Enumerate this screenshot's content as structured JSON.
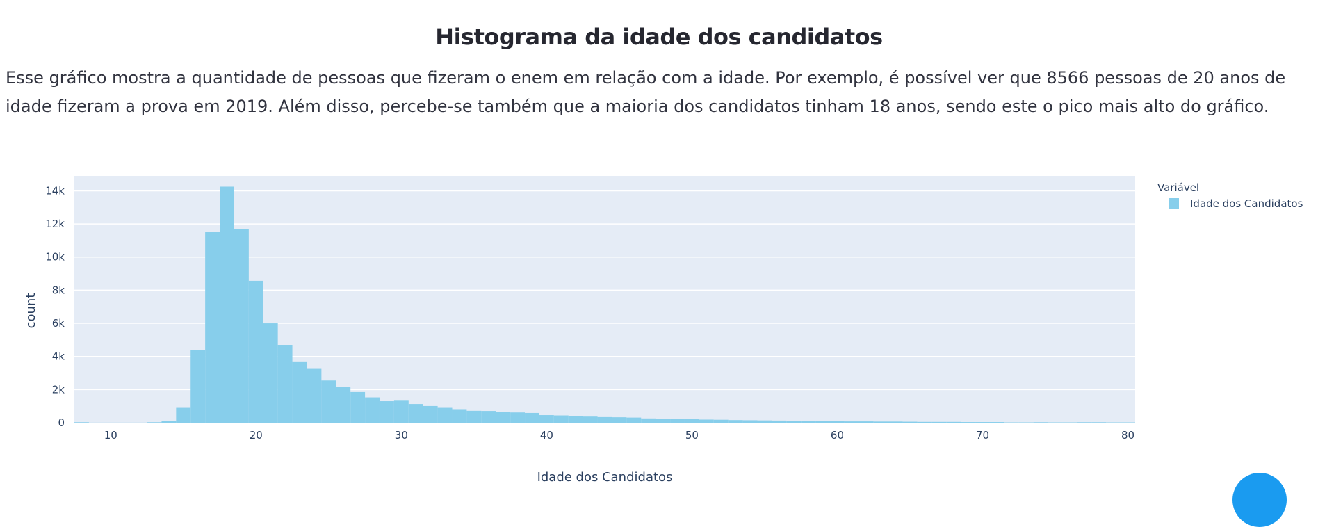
{
  "page": {
    "title": "Histograma da idade dos candidatos",
    "description": "Esse gráfico mostra a quantidade de pessoas que fizeram o enem em relação com a idade. Por exemplo, é possível ver que 8566 pessoas de 20 anos de idade fizeram a prova em 2019. Além disso, percebe-se também que a maioria dos candidatos tinham 18 anos, sendo este o pico mais alto do gráfico."
  },
  "chart_data": {
    "type": "bar",
    "title": "",
    "xlabel": "Idade dos Candidatos",
    "ylabel": "count",
    "xlim": [
      7.5,
      80.5
    ],
    "ylim": [
      0,
      14900
    ],
    "x_ticks": [
      10,
      20,
      30,
      40,
      50,
      60,
      70,
      80
    ],
    "x_tick_labels": [
      "10",
      "20",
      "30",
      "40",
      "50",
      "60",
      "70",
      "80"
    ],
    "y_ticks": [
      0,
      2000,
      4000,
      6000,
      8000,
      10000,
      12000,
      14000
    ],
    "y_tick_labels": [
      "0",
      "2k",
      "4k",
      "6k",
      "8k",
      "10k",
      "12k",
      "14k"
    ],
    "grid": true,
    "legend": {
      "title": "Variável",
      "position": "top-right"
    },
    "series": [
      {
        "name": "Idade dos Candidatos",
        "color": "#87ceeb",
        "bin_width": 1,
        "x": [
          8,
          9,
          10,
          11,
          12,
          13,
          14,
          15,
          16,
          17,
          18,
          19,
          20,
          21,
          22,
          23,
          24,
          25,
          26,
          27,
          28,
          29,
          30,
          31,
          32,
          33,
          34,
          35,
          36,
          37,
          38,
          39,
          40,
          41,
          42,
          43,
          44,
          45,
          46,
          47,
          48,
          49,
          50,
          51,
          52,
          53,
          54,
          55,
          56,
          57,
          58,
          59,
          60,
          61,
          62,
          63,
          64,
          65,
          66,
          67,
          68,
          69,
          70,
          71,
          72,
          73,
          74,
          75,
          76,
          77,
          78,
          79,
          80
        ],
        "values": [
          30,
          5,
          5,
          5,
          5,
          30,
          120,
          900,
          4380,
          11500,
          14250,
          11700,
          8566,
          6000,
          4700,
          3700,
          3250,
          2550,
          2180,
          1850,
          1530,
          1300,
          1330,
          1130,
          1010,
          900,
          820,
          720,
          710,
          630,
          620,
          590,
          460,
          440,
          400,
          370,
          340,
          330,
          310,
          260,
          250,
          220,
          210,
          190,
          180,
          160,
          150,
          140,
          130,
          120,
          110,
          100,
          90,
          80,
          80,
          70,
          70,
          60,
          50,
          50,
          50,
          40,
          40,
          40,
          20,
          20,
          30,
          20,
          20,
          30,
          30,
          20,
          20
        ]
      }
    ]
  }
}
